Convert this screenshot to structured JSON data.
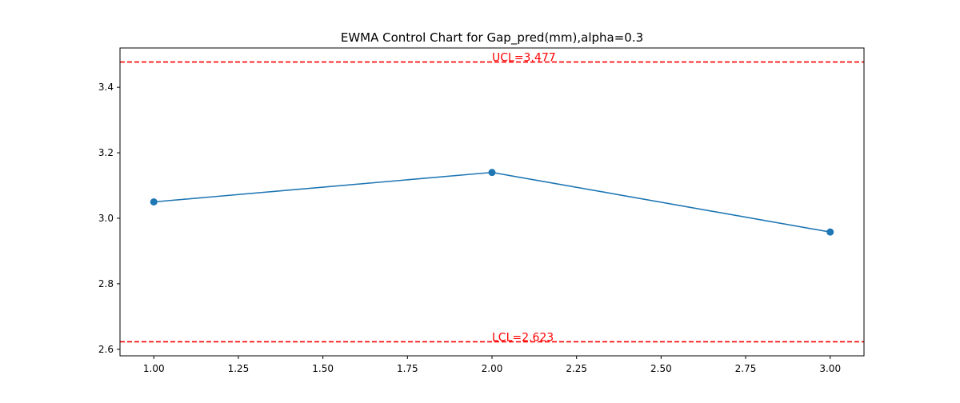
{
  "chart_data": {
    "type": "line",
    "title": "EWMA Control Chart for Gap_pred(mm),alpha=0.3",
    "xlabel": "",
    "ylabel": "",
    "x": [
      1.0,
      2.0,
      3.0
    ],
    "series": [
      {
        "values": [
          3.05,
          3.14,
          2.958
        ],
        "color": "#1f77b4",
        "marker": "circle"
      }
    ],
    "xlim": [
      0.9,
      3.1
    ],
    "ylim": [
      2.58,
      3.52
    ],
    "xticks": [
      1.0,
      1.25,
      1.5,
      1.75,
      2.0,
      2.25,
      2.5,
      2.75,
      3.0
    ],
    "xtick_labels": [
      "1.00",
      "1.25",
      "1.50",
      "1.75",
      "2.00",
      "2.25",
      "2.50",
      "2.75",
      "3.00"
    ],
    "yticks": [
      2.6,
      2.8,
      3.0,
      3.2,
      3.4
    ],
    "ytick_labels": [
      "2.6",
      "2.8",
      "3.0",
      "3.2",
      "3.4"
    ],
    "control_limits": [
      {
        "name": "UCL",
        "value": 3.477,
        "label": "UCL=3.477",
        "color": "#ff0000",
        "style": "dashed"
      },
      {
        "name": "LCL",
        "value": 2.623,
        "label": "LCL=2.623",
        "color": "#ff0000",
        "style": "dashed"
      }
    ],
    "grid": false,
    "legend": "none"
  }
}
